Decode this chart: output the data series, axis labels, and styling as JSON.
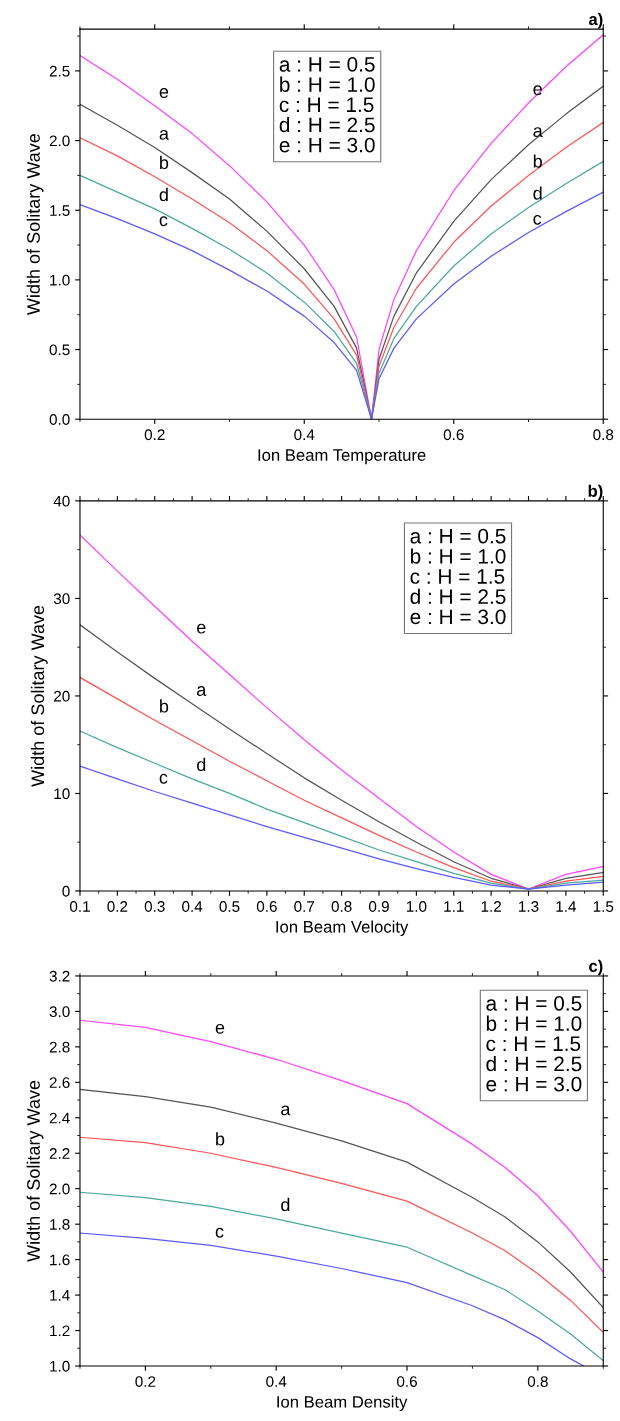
{
  "chart_data": [
    {
      "type": "line",
      "title": "a)",
      "xlabel": "Ion Beam Temperature",
      "ylabel": "Width of Solitary Wave",
      "x": [
        0.1,
        0.15,
        0.2,
        0.25,
        0.3,
        0.35,
        0.4,
        0.44,
        0.47,
        0.49,
        0.5,
        0.52,
        0.55,
        0.6,
        0.65,
        0.7,
        0.75,
        0.8
      ],
      "series": [
        {
          "name": "e",
          "color": "#ff44ff",
          "values": [
            2.61,
            2.44,
            2.25,
            2.05,
            1.82,
            1.56,
            1.25,
            0.93,
            0.59,
            0,
            0.5,
            0.86,
            1.21,
            1.64,
            1.98,
            2.27,
            2.53,
            2.76
          ]
        },
        {
          "name": "a",
          "color": "#555555",
          "values": [
            2.26,
            2.11,
            1.95,
            1.77,
            1.58,
            1.35,
            1.08,
            0.81,
            0.51,
            0,
            0.43,
            0.74,
            1.05,
            1.42,
            1.72,
            1.97,
            2.19,
            2.39
          ]
        },
        {
          "name": "b",
          "color": "#ff5555",
          "values": [
            2.02,
            1.89,
            1.74,
            1.58,
            1.41,
            1.21,
            0.97,
            0.72,
            0.46,
            0,
            0.38,
            0.66,
            0.94,
            1.27,
            1.53,
            1.75,
            1.95,
            2.13
          ]
        },
        {
          "name": "d",
          "color": "#4aa8a0",
          "values": [
            1.75,
            1.63,
            1.51,
            1.37,
            1.22,
            1.05,
            0.84,
            0.63,
            0.4,
            0,
            0.33,
            0.58,
            0.81,
            1.1,
            1.33,
            1.52,
            1.69,
            1.85
          ]
        },
        {
          "name": "c",
          "color": "#5a5aff",
          "values": [
            1.54,
            1.44,
            1.33,
            1.21,
            1.07,
            0.92,
            0.74,
            0.55,
            0.35,
            0,
            0.29,
            0.51,
            0.72,
            0.97,
            1.17,
            1.34,
            1.49,
            1.63
          ]
        }
      ],
      "xlim": [
        0.1,
        0.8
      ],
      "xticks": [
        0.2,
        0.4,
        0.6,
        0.8
      ],
      "ylim": [
        0,
        2.8
      ],
      "yticks": [
        {
          "value": 0,
          "label": "0.0"
        },
        0.5,
        {
          "value": 1,
          "label": "1.0"
        },
        1.5,
        {
          "value": 2,
          "label": "2.0"
        },
        2.5
      ],
      "grid": false,
      "legend": false,
      "marker": "none",
      "line_style": "solid",
      "annotations": [
        "a : H = 0.5",
        "b : H = 1.0",
        "c : H = 1.5",
        "d : H = 2.5",
        "e : H = 3.0"
      ]
    },
    {
      "type": "line",
      "title": "b)",
      "xlabel": "Ion Beam Velocity",
      "ylabel": "Width of Solitary Wave",
      "x": [
        0.1,
        0.2,
        0.3,
        0.4,
        0.5,
        0.6,
        0.7,
        0.8,
        0.9,
        1.0,
        1.1,
        1.2,
        1.3,
        1.4,
        1.5
      ],
      "series": [
        {
          "name": "e",
          "color": "#ff44ff",
          "values": [
            36.5,
            32.8,
            29.2,
            25.6,
            22.2,
            18.8,
            15.5,
            12.4,
            9.5,
            6.6,
            4.0,
            1.7,
            0.2,
            1.7,
            2.5
          ]
        },
        {
          "name": "a",
          "color": "#555555",
          "values": [
            27.3,
            24.5,
            21.8,
            19.2,
            16.6,
            14.1,
            11.6,
            9.3,
            7.1,
            5.0,
            3.0,
            1.3,
            0.2,
            1.3,
            1.9
          ]
        },
        {
          "name": "b",
          "color": "#ff5555",
          "values": [
            21.9,
            19.7,
            17.5,
            15.4,
            13.3,
            11.3,
            9.3,
            7.5,
            5.7,
            4.0,
            2.4,
            1.0,
            0.2,
            1.0,
            1.5
          ]
        },
        {
          "name": "d",
          "color": "#4aa8a0",
          "values": [
            16.4,
            14.7,
            13.1,
            11.5,
            10.0,
            8.4,
            7.0,
            5.6,
            4.2,
            3.0,
            1.8,
            0.8,
            0.2,
            0.8,
            1.1
          ]
        },
        {
          "name": "c",
          "color": "#5a5aff",
          "values": [
            12.8,
            11.5,
            10.2,
            9.0,
            7.8,
            6.6,
            5.5,
            4.4,
            3.3,
            2.3,
            1.4,
            0.6,
            0.2,
            0.6,
            0.9
          ]
        }
      ],
      "xlim": [
        0.1,
        1.5
      ],
      "xticks": [
        0.1,
        0.2,
        0.3,
        0.4,
        0.5,
        0.6,
        0.7,
        0.8,
        0.9,
        {
          "value": 1.0,
          "label": "1.0"
        },
        1.1,
        1.2,
        1.3,
        1.4,
        1.5
      ],
      "ylim": [
        0,
        40
      ],
      "yticks": [
        0,
        10,
        20,
        30,
        40
      ],
      "grid": false,
      "legend": false,
      "marker": "none",
      "line_style": "solid",
      "annotations": [
        "a : H = 0.5",
        "b : H = 1.0",
        "c : H = 1.5",
        "d : H = 2.5",
        "e : H = 3.0"
      ]
    },
    {
      "type": "line",
      "title": "c)",
      "xlabel": "Ion Beam Density",
      "ylabel": "Width of Solitary Wave",
      "x": [
        0.1,
        0.2,
        0.3,
        0.4,
        0.5,
        0.6,
        0.7,
        0.75,
        0.8,
        0.85,
        0.9
      ],
      "series": [
        {
          "name": "e",
          "color": "#ff44ff",
          "values": [
            2.95,
            2.91,
            2.83,
            2.73,
            2.61,
            2.48,
            2.25,
            2.12,
            1.96,
            1.76,
            1.53
          ]
        },
        {
          "name": "a",
          "color": "#555555",
          "values": [
            2.56,
            2.52,
            2.46,
            2.37,
            2.27,
            2.15,
            1.95,
            1.84,
            1.7,
            1.53,
            1.33
          ]
        },
        {
          "name": "b",
          "color": "#ff5555",
          "values": [
            2.29,
            2.26,
            2.2,
            2.12,
            2.03,
            1.93,
            1.75,
            1.65,
            1.52,
            1.37,
            1.19
          ]
        },
        {
          "name": "d",
          "color": "#4aa8a0",
          "values": [
            1.98,
            1.95,
            1.9,
            1.83,
            1.75,
            1.67,
            1.51,
            1.43,
            1.31,
            1.18,
            1.03
          ]
        },
        {
          "name": "c",
          "color": "#5a5aff",
          "x": [
            0.1,
            0.2,
            0.3,
            0.4,
            0.5,
            0.6,
            0.7,
            0.75,
            0.8,
            0.85,
            0.87
          ],
          "values": [
            1.75,
            1.72,
            1.68,
            1.62,
            1.55,
            1.47,
            1.34,
            1.26,
            1.16,
            1.04,
            1.0
          ]
        }
      ],
      "xlim": [
        0.1,
        0.9
      ],
      "xticks": [
        0.2,
        0.4,
        0.6,
        0.8
      ],
      "ylim": [
        1.0,
        3.2
      ],
      "yticks": [
        {
          "value": 1.0,
          "label": "1.0"
        },
        1.2,
        1.4,
        1.6,
        1.8,
        {
          "value": 2.0,
          "label": "2.0"
        },
        2.2,
        2.4,
        2.6,
        2.8,
        {
          "value": 3.0,
          "label": "3.0"
        },
        3.2
      ],
      "grid": false,
      "legend": false,
      "marker": "none",
      "line_style": "solid",
      "annotations": [
        "a : H = 0.5",
        "b : H = 1.0",
        "c : H = 1.5",
        "d : H = 2.5",
        "e : H = 3.0"
      ]
    }
  ]
}
